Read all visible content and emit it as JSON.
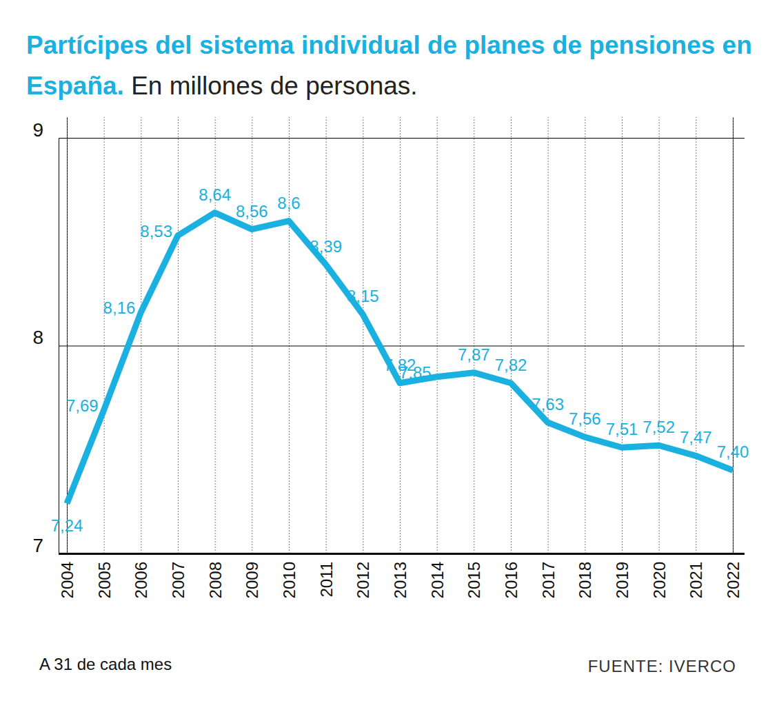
{
  "chart_data": {
    "type": "line",
    "title": "Partícipes del sistema individual de planes de pensiones en España.",
    "subtitle": "En millones de personas.",
    "note": "A 31 de cada mes",
    "source": "FUENTE: IVERCO",
    "categories": [
      "2004",
      "2005",
      "2006",
      "2007",
      "2008",
      "2009",
      "2010",
      "2011",
      "2012",
      "2013",
      "2014",
      "2015",
      "2016",
      "2017",
      "2018",
      "2019",
      "2020",
      "2021",
      "2022"
    ],
    "values": [
      7.24,
      7.69,
      8.16,
      8.53,
      8.64,
      8.56,
      8.6,
      8.39,
      8.15,
      7.82,
      7.85,
      7.87,
      7.82,
      7.63,
      7.56,
      7.51,
      7.52,
      7.47,
      7.4
    ],
    "value_labels": [
      "7,24",
      "7,69",
      "8,16",
      "8,53",
      "8,64",
      "8,56",
      "8,6",
      "8,39",
      "8,15",
      "7,82",
      "7,85",
      "7,87",
      "7,82",
      "7,63",
      "7,56",
      "7,51",
      "7,52",
      "7,47",
      "7,40"
    ],
    "color": "#1ab0e0",
    "ylim": [
      7,
      9
    ],
    "yticks": [
      7,
      8,
      9
    ],
    "grid": true,
    "data_labels": true
  }
}
